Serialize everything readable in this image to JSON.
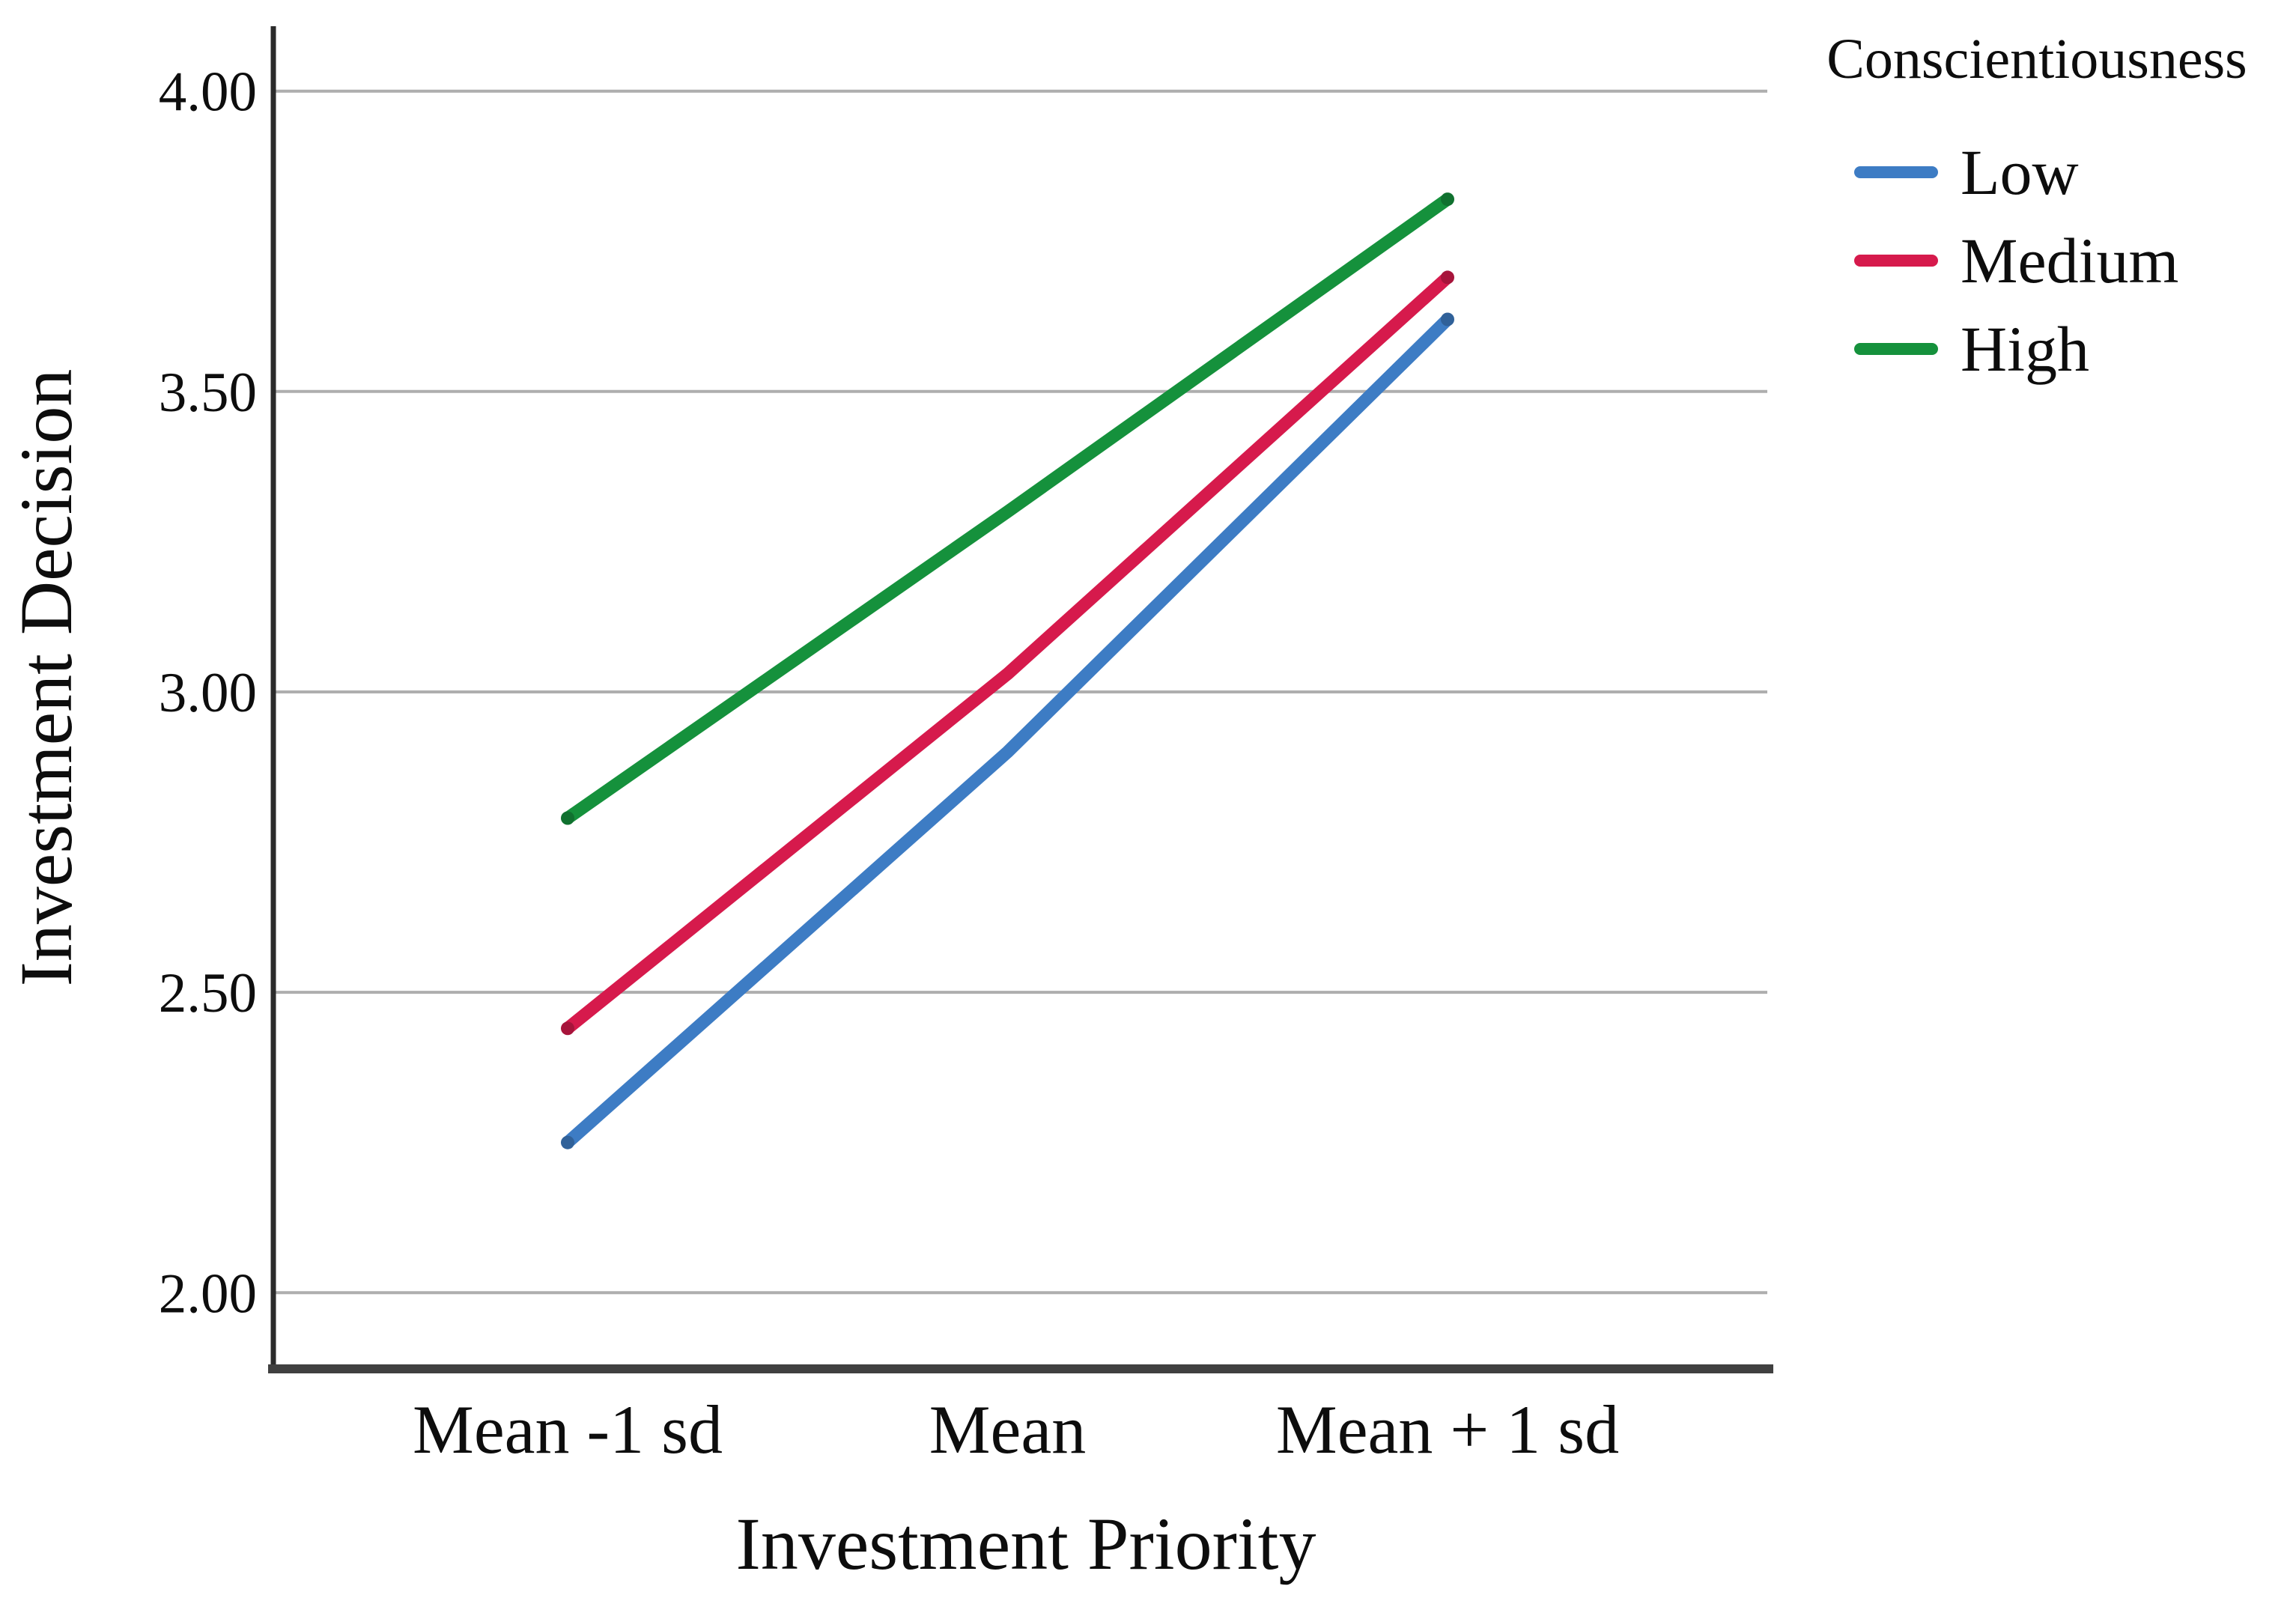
{
  "chart_data": {
    "type": "line",
    "title": "",
    "xlabel": "Investment Priority",
    "ylabel": "Investment Decision",
    "categories": [
      "Mean -1 sd",
      "Mean",
      "Mean + 1 sd"
    ],
    "series": [
      {
        "name": "Low",
        "color": "#3d7cc4",
        "values": [
          2.25,
          2.9,
          3.62
        ]
      },
      {
        "name": "Medium",
        "color": "#d61a4c",
        "values": [
          2.44,
          3.03,
          3.69
        ]
      },
      {
        "name": "High",
        "color": "#15913c",
        "values": [
          2.79,
          3.3,
          3.82
        ]
      }
    ],
    "yticks": [
      4.0,
      3.5,
      3.0,
      2.5,
      2.0
    ],
    "ytick_labels": [
      "4.00",
      "3.50",
      "3.00",
      "2.50",
      "2.00"
    ],
    "ylim": [
      1.877,
      4.108
    ],
    "grid": true,
    "legend": {
      "title": "Conscientiousness",
      "position": "top-right"
    }
  },
  "colors": {
    "background": "#ffffff",
    "gridline": "#aeaeae",
    "y_axis": "#2b2b2b",
    "x_axis": "#404040",
    "text": "#0d0d0d"
  }
}
